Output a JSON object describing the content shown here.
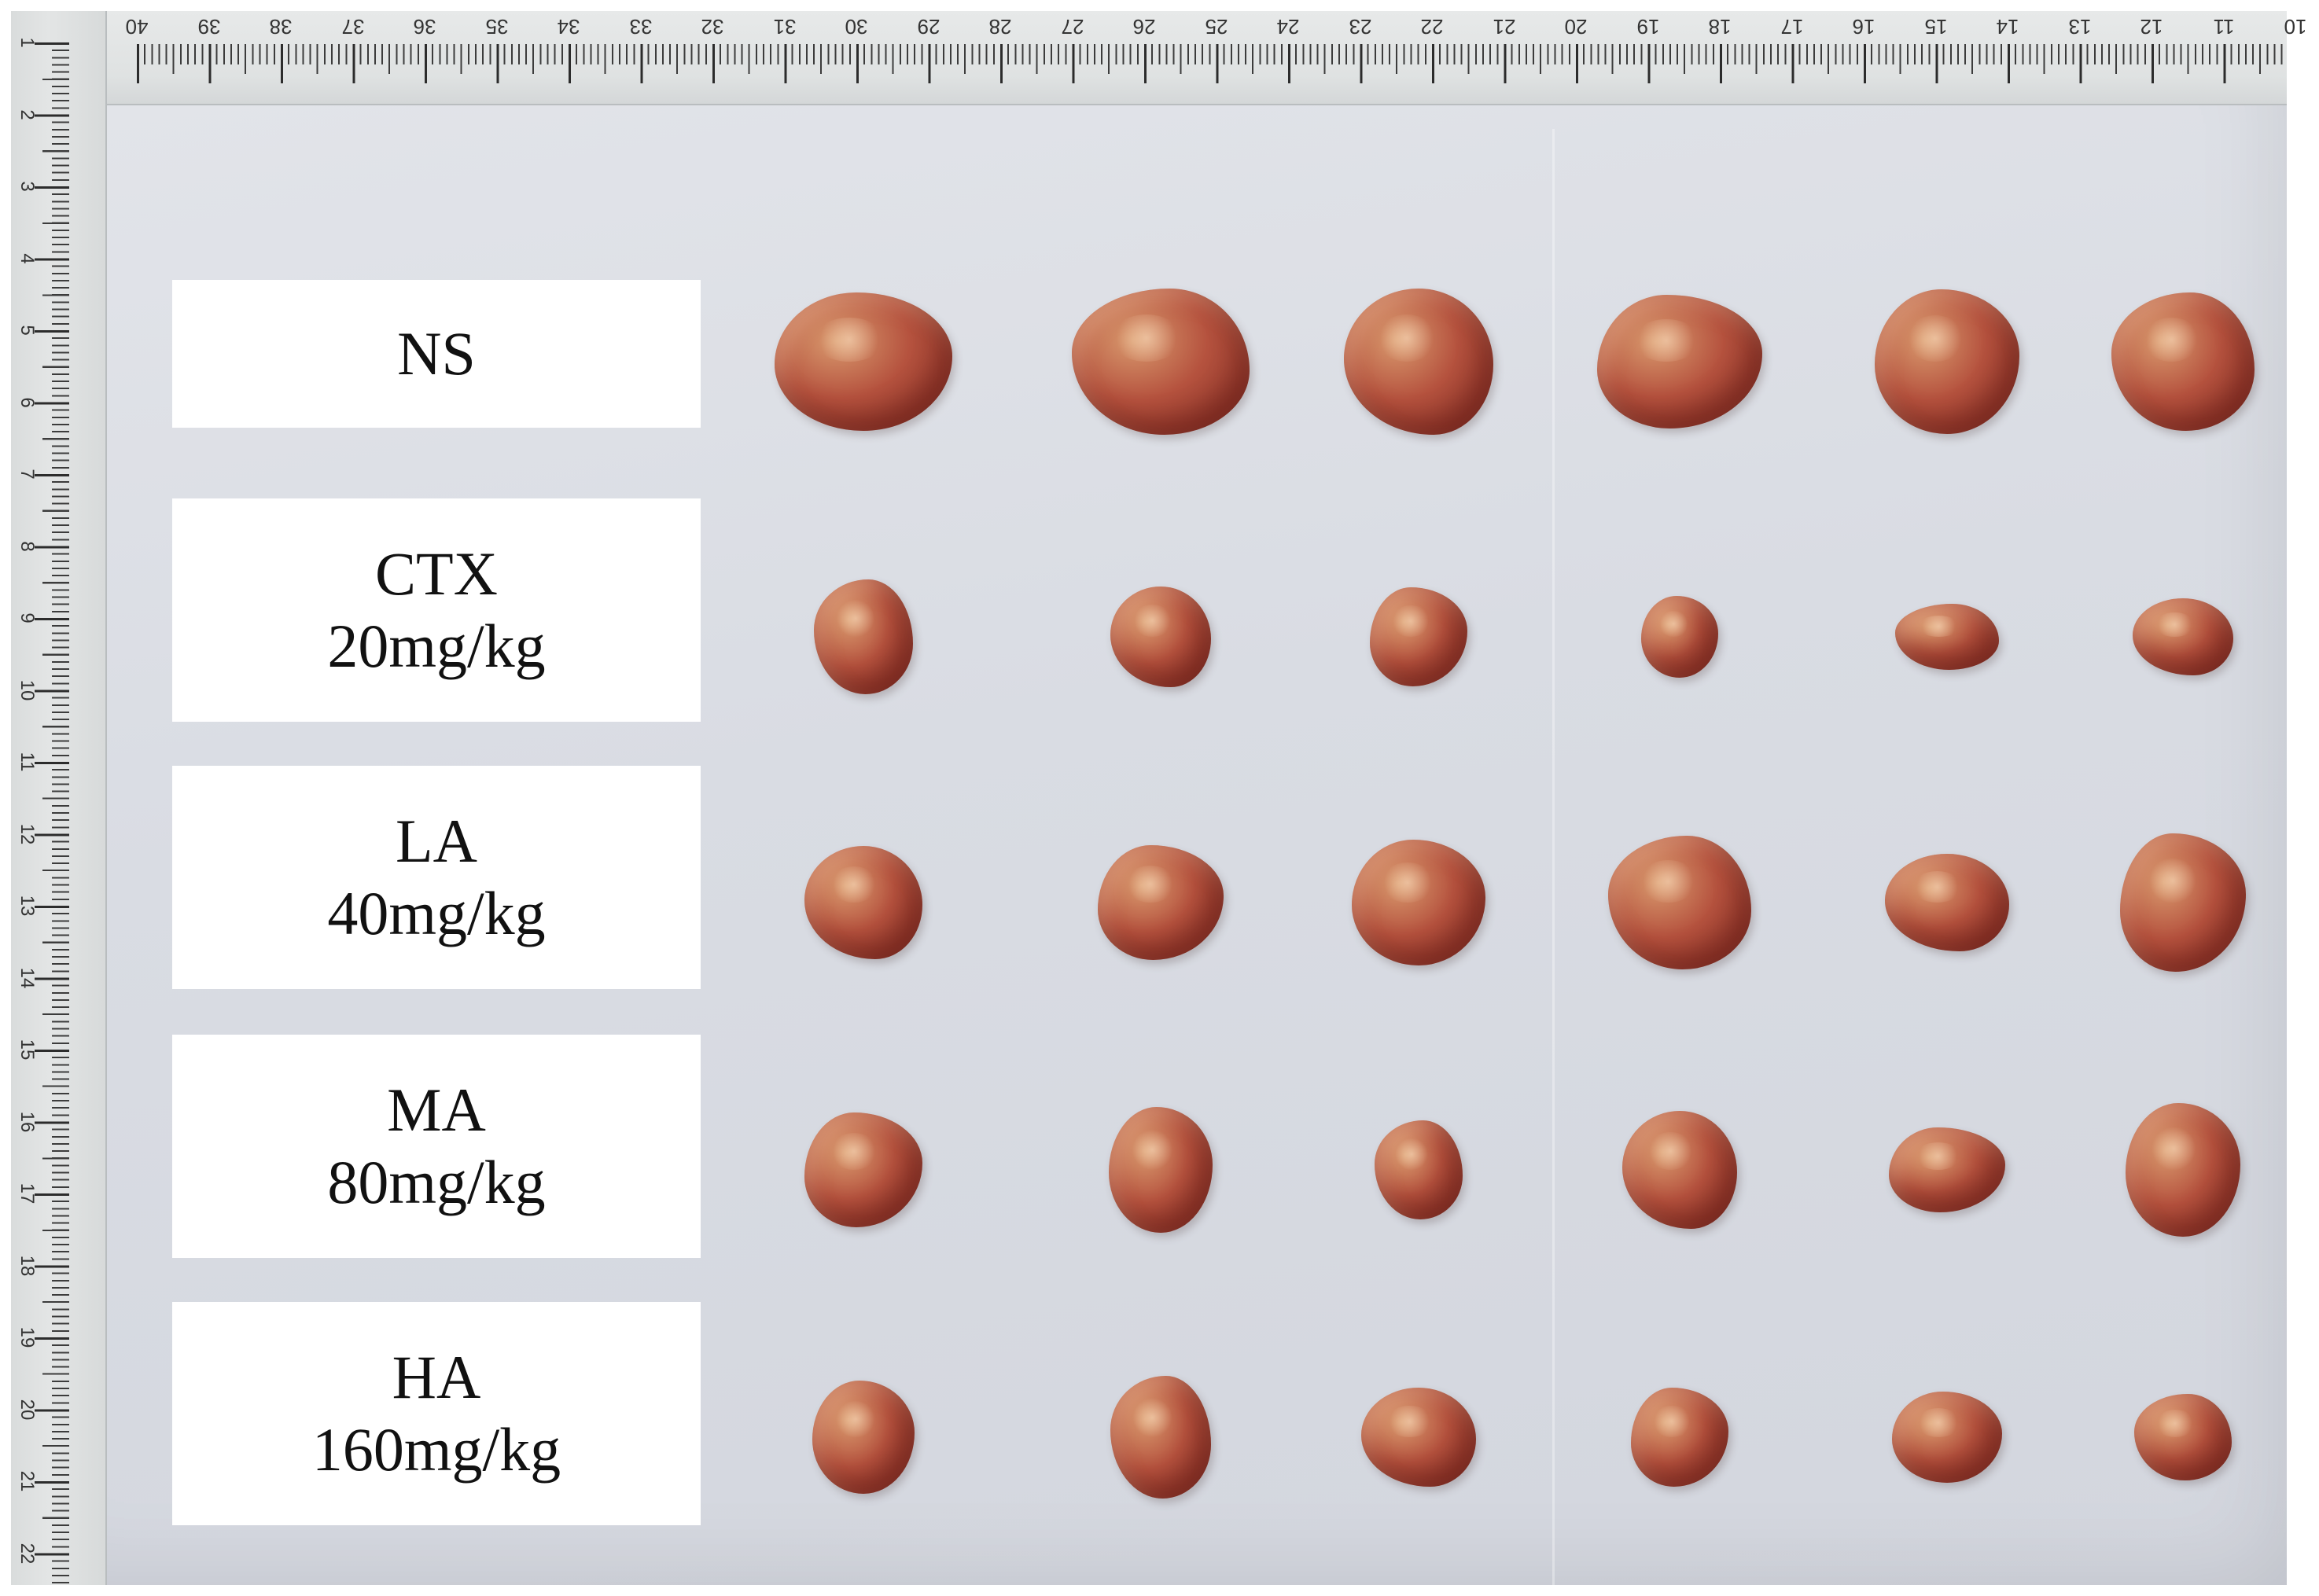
{
  "ruler_top_numbers": [
    "40",
    "39",
    "38",
    "37",
    "36",
    "35",
    "34",
    "33",
    "32",
    "31",
    "30",
    "29",
    "28",
    "27",
    "26",
    "25",
    "24",
    "23",
    "22",
    "21",
    "20",
    "19",
    "18",
    "17",
    "16",
    "15",
    "14",
    "13",
    "12",
    "11",
    "10"
  ],
  "ruler_left_numbers": [
    "1",
    "2",
    "3",
    "4",
    "5",
    "6",
    "7",
    "8",
    "9",
    "10",
    "11",
    "12",
    "13",
    "14",
    "15",
    "16",
    "17",
    "18",
    "19",
    "20",
    "21",
    "22"
  ],
  "groups": [
    {
      "name": "NS",
      "dose": ""
    },
    {
      "name": "CTX",
      "dose": "20mg/kg"
    },
    {
      "name": "LA",
      "dose": "40mg/kg"
    },
    {
      "name": "MA",
      "dose": "80mg/kg"
    },
    {
      "name": "HA",
      "dose": "160mg/kg"
    }
  ],
  "colors": {
    "background": "#dadde3",
    "label_box": "#ffffff",
    "tumor_primary": "#b5523e",
    "tumor_highlight": "#d99a6e",
    "tumor_dark": "#7c2a22"
  }
}
